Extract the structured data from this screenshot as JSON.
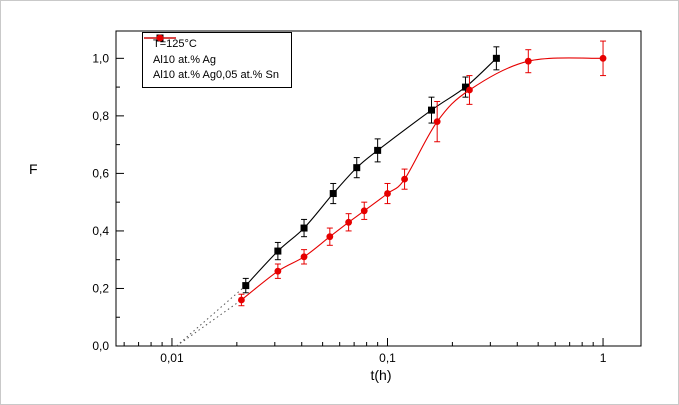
{
  "chart_data": {
    "type": "line",
    "title": "",
    "xlabel": "t(h)",
    "ylabel": "F",
    "x_scale": "log",
    "xlim": [
      0.0055,
      1.5
    ],
    "ylim": [
      0.0,
      1.095
    ],
    "grid": false,
    "frame": true,
    "extrapolation_color": "#555555",
    "x_ticks": [
      {
        "value": 0.01,
        "label": "0,01"
      },
      {
        "value": 0.1,
        "label": "0,1"
      },
      {
        "value": 1,
        "label": "1"
      }
    ],
    "y_ticks": [
      {
        "value": 0.0,
        "label": "0,0"
      },
      {
        "value": 0.2,
        "label": "0,2"
      },
      {
        "value": 0.4,
        "label": "0,4"
      },
      {
        "value": 0.6,
        "label": "0,6"
      },
      {
        "value": 0.8,
        "label": "0,8"
      },
      {
        "value": 1.0,
        "label": "1,0"
      }
    ],
    "legend": {
      "title": "T=125°C",
      "position": "top-left"
    },
    "series": [
      {
        "name": "Al10 at.% Ag",
        "color": "#000000",
        "marker": "square",
        "x": [
          0.022,
          0.031,
          0.041,
          0.056,
          0.072,
          0.09,
          0.16,
          0.23,
          0.32
        ],
        "y": [
          0.21,
          0.33,
          0.41,
          0.53,
          0.62,
          0.68,
          0.82,
          0.9,
          1.0
        ],
        "yerr": [
          0.025,
          0.03,
          0.03,
          0.035,
          0.035,
          0.04,
          0.045,
          0.035,
          0.04
        ],
        "extrapolation": {
          "x": [
            0.0105,
            0.022
          ],
          "y": [
            0.0,
            0.21
          ]
        }
      },
      {
        "name": "Al10 at.% Ag0,05 at.% Sn",
        "color": "#e60000",
        "marker": "circle",
        "x": [
          0.021,
          0.031,
          0.041,
          0.054,
          0.066,
          0.078,
          0.1,
          0.12,
          0.17,
          0.24,
          0.45,
          1.0
        ],
        "y": [
          0.16,
          0.26,
          0.31,
          0.38,
          0.43,
          0.47,
          0.53,
          0.58,
          0.78,
          0.89,
          0.99,
          1.0
        ],
        "yerr": [
          0.02,
          0.025,
          0.025,
          0.03,
          0.03,
          0.03,
          0.035,
          0.035,
          0.07,
          0.05,
          0.04,
          0.06
        ],
        "extrapolation": {
          "x": [
            0.0105,
            0.021
          ],
          "y": [
            0.0,
            0.16
          ]
        }
      }
    ]
  }
}
